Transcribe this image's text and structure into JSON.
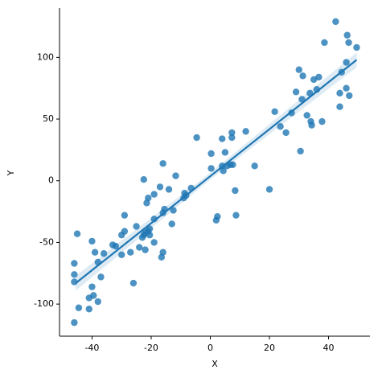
{
  "chart_data": {
    "type": "scatter",
    "x_label": "X",
    "y_label": "Y",
    "xlim": [
      -51,
      54
    ],
    "ylim": [
      -126,
      140
    ],
    "xticks": [
      -40,
      -20,
      0,
      20,
      40
    ],
    "yticks": [
      -100,
      -50,
      0,
      50,
      100
    ],
    "grid": false,
    "series": [
      {
        "color": "#1f77b4",
        "x": [
          -46,
          -46,
          -46,
          -46,
          -45,
          -44.5,
          -41,
          -41,
          -40,
          -40,
          -39,
          -39.5,
          -38,
          -38,
          -37,
          -36,
          -33,
          -32,
          -30,
          -30,
          -29,
          -29,
          -27,
          -26,
          -25,
          -24,
          -23,
          -22.5,
          -22.5,
          -22,
          -22,
          -21.5,
          -21,
          -21,
          -20.5,
          -20.5,
          -19,
          -19,
          -19,
          -17,
          -16.5,
          -16,
          -16,
          -16,
          -15.5,
          -14,
          -13,
          -12.5,
          -11.7,
          -9,
          -8.7,
          -8.2,
          -6.5,
          -4.6,
          0.3,
          0.3,
          2,
          2.4,
          4,
          4,
          4.4,
          5,
          5.7,
          6.8,
          7.3,
          7.3,
          7.6,
          8.4,
          8.7,
          12,
          15,
          20,
          21.8,
          23.7,
          25.6,
          27.5,
          29,
          30,
          30.5,
          31,
          31.3,
          32.7,
          33.7,
          34,
          34.3,
          35,
          36,
          36.7,
          37.8,
          38.6,
          42.4,
          43.8,
          43.8,
          44.4,
          46,
          46,
          46.3,
          46.8,
          47,
          49.5
        ],
        "values": [
          -115,
          -67,
          -76,
          -82,
          -43,
          -103,
          -95,
          -104,
          -86,
          -49,
          -58,
          -93,
          -98,
          -66,
          -78,
          -59,
          -52,
          -53,
          -60,
          -44,
          -41,
          -28,
          -58,
          -83,
          -37,
          -54,
          -46,
          1,
          -44,
          -42,
          -56,
          -18,
          -41,
          -14,
          -39,
          -44,
          -11,
          -31,
          -50,
          -5,
          -62,
          14,
          -26,
          -58,
          -23,
          -7,
          -35,
          -24,
          4,
          -14,
          -10,
          -12,
          -6,
          35,
          22,
          10,
          -32,
          -29,
          34,
          12,
          8,
          23,
          12,
          13,
          35,
          39,
          13,
          -8,
          -28,
          40,
          12,
          -7,
          56,
          44,
          39,
          55,
          72,
          90,
          24,
          66,
          85,
          53,
          71,
          48,
          45,
          82,
          74,
          84,
          48,
          112,
          129,
          60,
          71,
          88,
          75,
          96,
          118,
          112,
          69,
          108
        ]
      }
    ],
    "regression": {
      "color": "#1f77b4",
      "x": [
        -45.5,
        49.5
      ],
      "values": [
        -83,
        98
      ],
      "ci_x": [
        -45.5,
        0,
        49.5
      ],
      "ci_lower": [
        -89,
        1,
        92
      ],
      "ci_upper": [
        -77,
        6.5,
        104
      ]
    }
  }
}
